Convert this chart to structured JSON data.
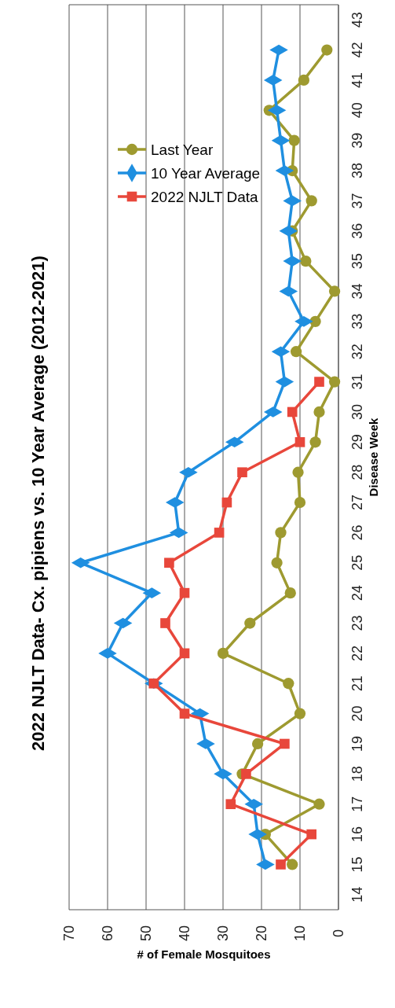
{
  "chart_data": {
    "type": "line",
    "orientation": "horizontal",
    "title": "2022 NJLT Data- Cx. pipiens vs. 10 Year Average (2012-2021)",
    "ylabel": "Disease Week",
    "xlabel": "# of Female Mosquitoes",
    "ylim": [
      13.5,
      43.5
    ],
    "yticks": [
      14,
      15,
      16,
      17,
      18,
      19,
      20,
      21,
      22,
      23,
      24,
      25,
      26,
      27,
      28,
      29,
      30,
      31,
      32,
      33,
      34,
      35,
      36,
      37,
      38,
      39,
      40,
      41,
      42,
      43
    ],
    "xlim": [
      70,
      0
    ],
    "xticks": [
      70,
      60,
      50,
      40,
      30,
      20,
      10,
      0
    ],
    "grid": "x",
    "legend": "top left",
    "series": [
      {
        "name": "Last Year",
        "color": "#9e9a30",
        "marker": "circle",
        "x": [
          15,
          16,
          17,
          18,
          19,
          20,
          21,
          22,
          23,
          24,
          25,
          26,
          27,
          28,
          29,
          30,
          31,
          32,
          33,
          34,
          35,
          36,
          37,
          38,
          39,
          40,
          41,
          42
        ],
        "values": [
          12,
          19,
          5,
          25,
          21,
          10,
          13,
          30,
          23,
          12.5,
          16,
          15,
          10,
          10.5,
          6,
          5,
          1,
          11,
          6,
          1,
          8.5,
          12,
          7,
          12,
          11.5,
          18,
          9,
          3
        ]
      },
      {
        "name": "10 Year Average",
        "color": "#1f8fe0",
        "marker": "diamond",
        "x": [
          15,
          16,
          17,
          18,
          19,
          20,
          21,
          22,
          23,
          24,
          25,
          26,
          27,
          28,
          29,
          30,
          31,
          32,
          33,
          34,
          35,
          36,
          37,
          38,
          39,
          40,
          41,
          42
        ],
        "values": [
          19,
          21,
          22,
          30,
          34.5,
          36,
          48,
          60,
          56,
          48.5,
          67,
          41.5,
          42.5,
          39,
          27,
          17,
          14,
          15,
          9,
          13,
          12,
          13,
          12,
          14,
          15,
          16,
          17,
          15.5
        ]
      },
      {
        "name": "2022 NJLT Data",
        "color": "#e8473b",
        "marker": "square",
        "x": [
          15,
          16,
          17,
          18,
          19,
          20,
          21,
          22,
          23,
          24,
          25,
          26,
          27,
          28,
          29,
          30,
          31
        ],
        "values": [
          15,
          7,
          28,
          24,
          14,
          40,
          48,
          40,
          45,
          40,
          44,
          31,
          29,
          25,
          10,
          12,
          5
        ]
      }
    ]
  }
}
